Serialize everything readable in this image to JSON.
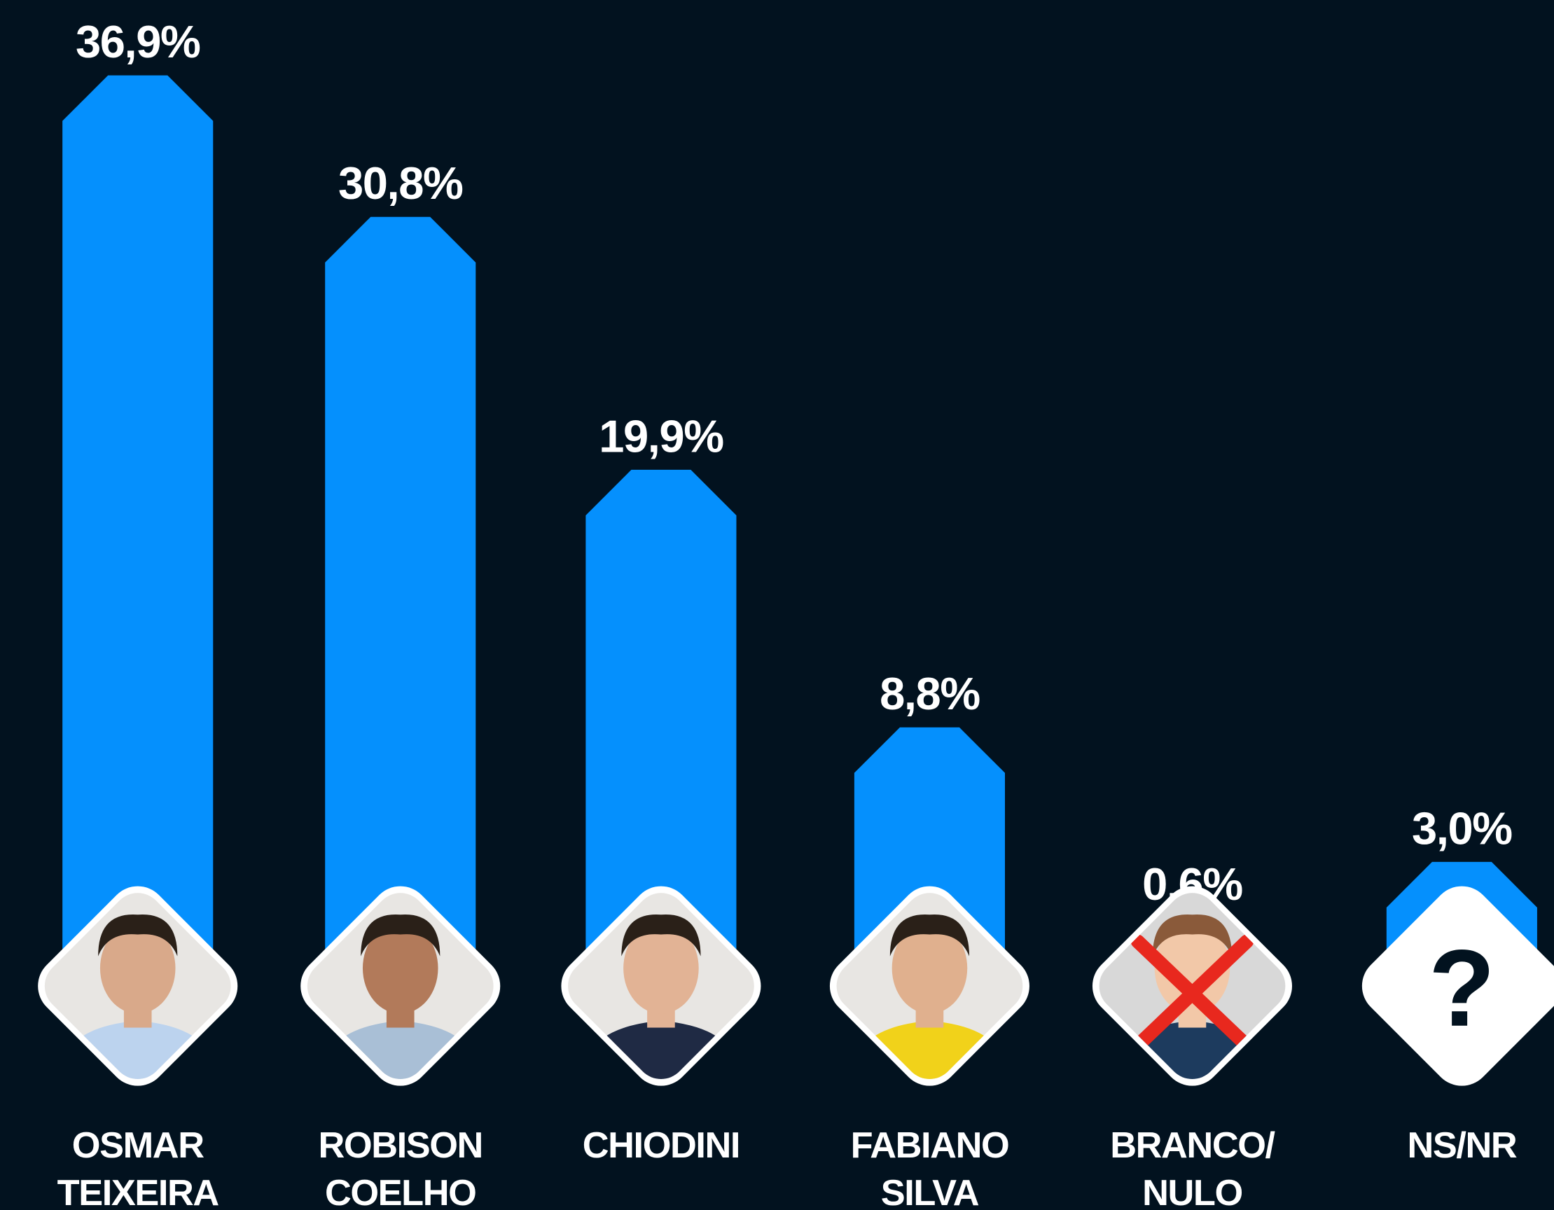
{
  "chart_data": {
    "type": "bar",
    "categories": [
      [
        "OSMAR",
        "TEIXEIRA"
      ],
      [
        "ROBISON",
        "COELHO"
      ],
      [
        "CHIODINI"
      ],
      [
        "FABIANO",
        "SILVA"
      ],
      [
        "BRANCO/",
        "NULO"
      ],
      [
        "NS/NR"
      ]
    ],
    "values": [
      36.9,
      30.8,
      19.9,
      8.8,
      0.6,
      3.0
    ],
    "value_labels": [
      "36,9%",
      "30,8%",
      "19,9%",
      "8,8%",
      "0,6%",
      "3,0%"
    ],
    "color": "#0590fd",
    "annotations": [
      "?"
    ]
  }
}
